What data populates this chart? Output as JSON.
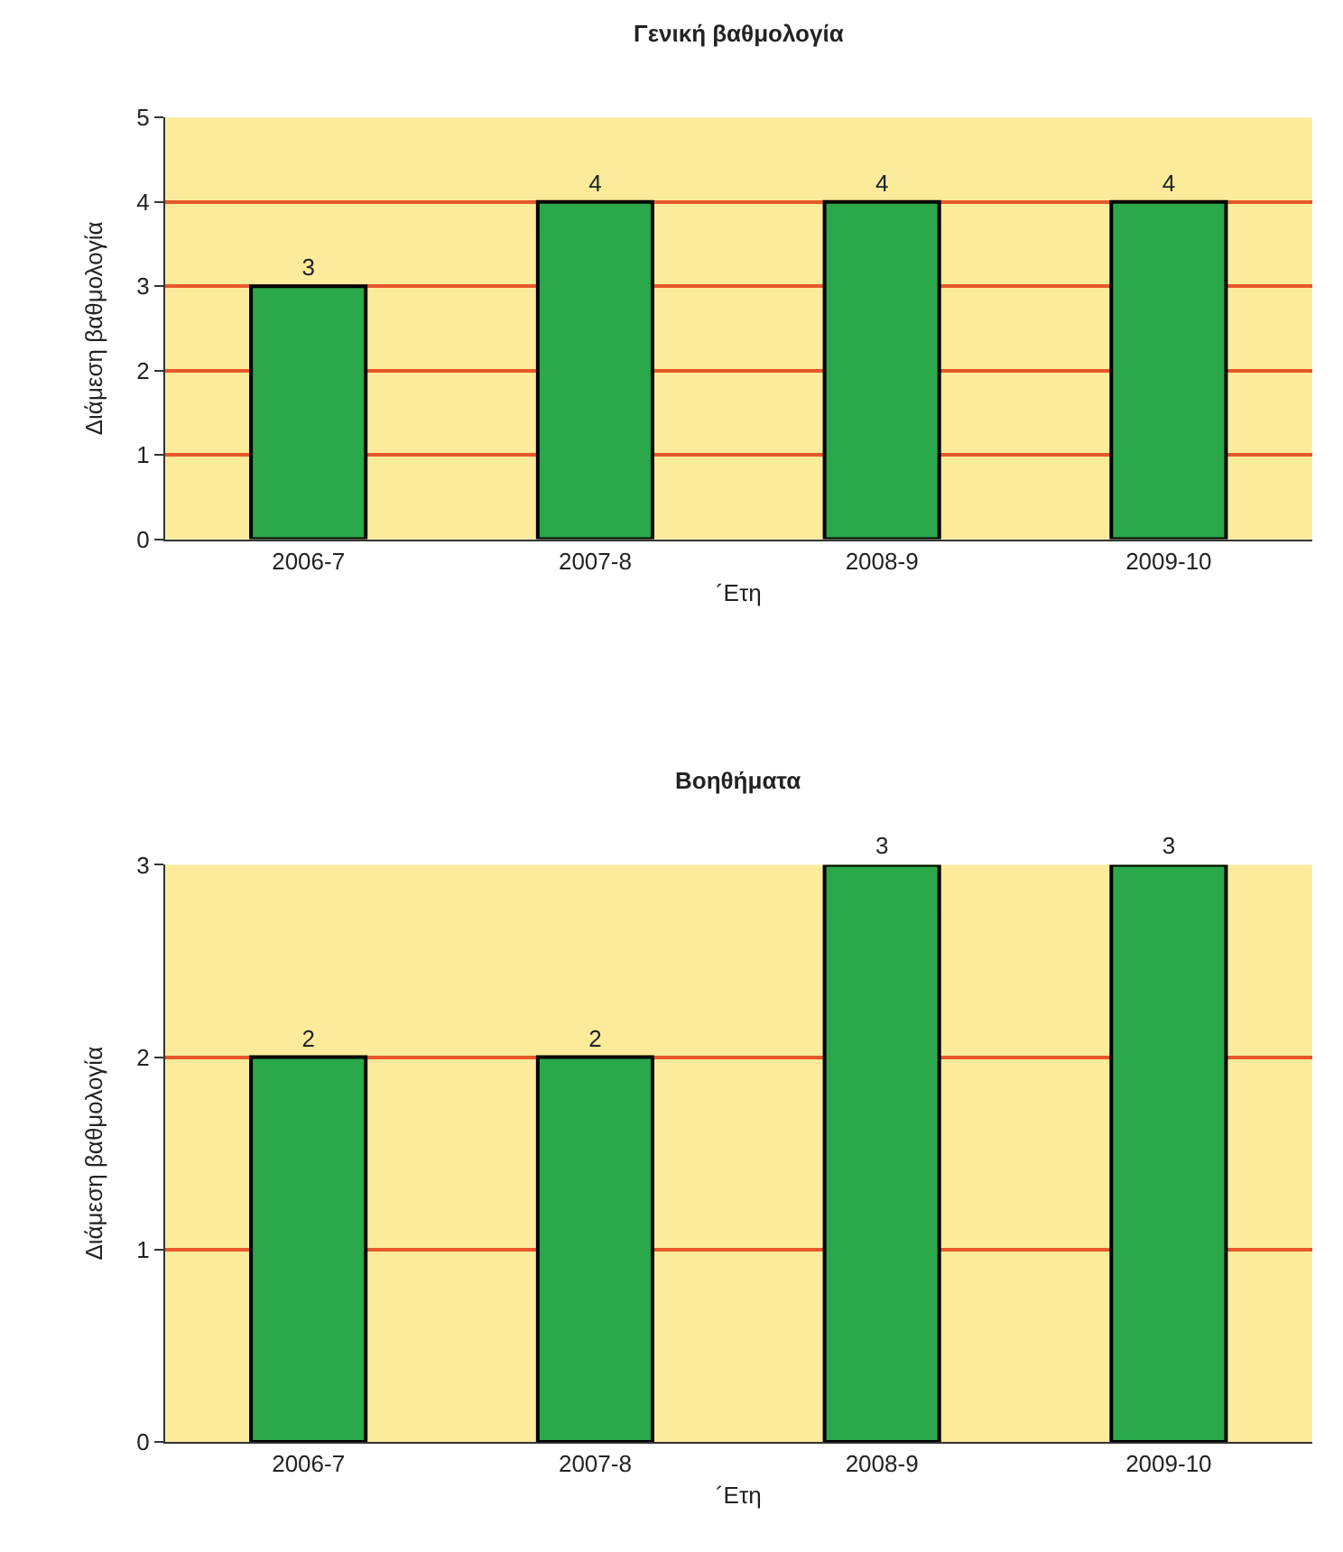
{
  "chart_data": [
    {
      "type": "bar",
      "title": "Γενική βαθμολογία",
      "xlabel": "´Ετη",
      "ylabel": "Διάμεση βαθμολογία",
      "categories": [
        "2006-7",
        "2007-8",
        "2008-9",
        "2009-10"
      ],
      "values": [
        3,
        4,
        4,
        4
      ],
      "color": "#2aa84a",
      "ylim": [
        0,
        5
      ],
      "yticks": [
        0,
        1,
        2,
        3,
        4,
        5
      ],
      "grid": "y",
      "data_labels": true
    },
    {
      "type": "bar",
      "title": "Βοηθήματα",
      "xlabel": "´Ετη",
      "ylabel": "Διάμεση βαθμολογία",
      "categories": [
        "2006-7",
        "2007-8",
        "2008-9",
        "2009-10"
      ],
      "values": [
        2,
        2,
        3,
        3
      ],
      "color": "#2aa84a",
      "ylim": [
        0,
        3
      ],
      "yticks": [
        0,
        1,
        2,
        3
      ],
      "grid": "y",
      "data_labels": true
    }
  ]
}
